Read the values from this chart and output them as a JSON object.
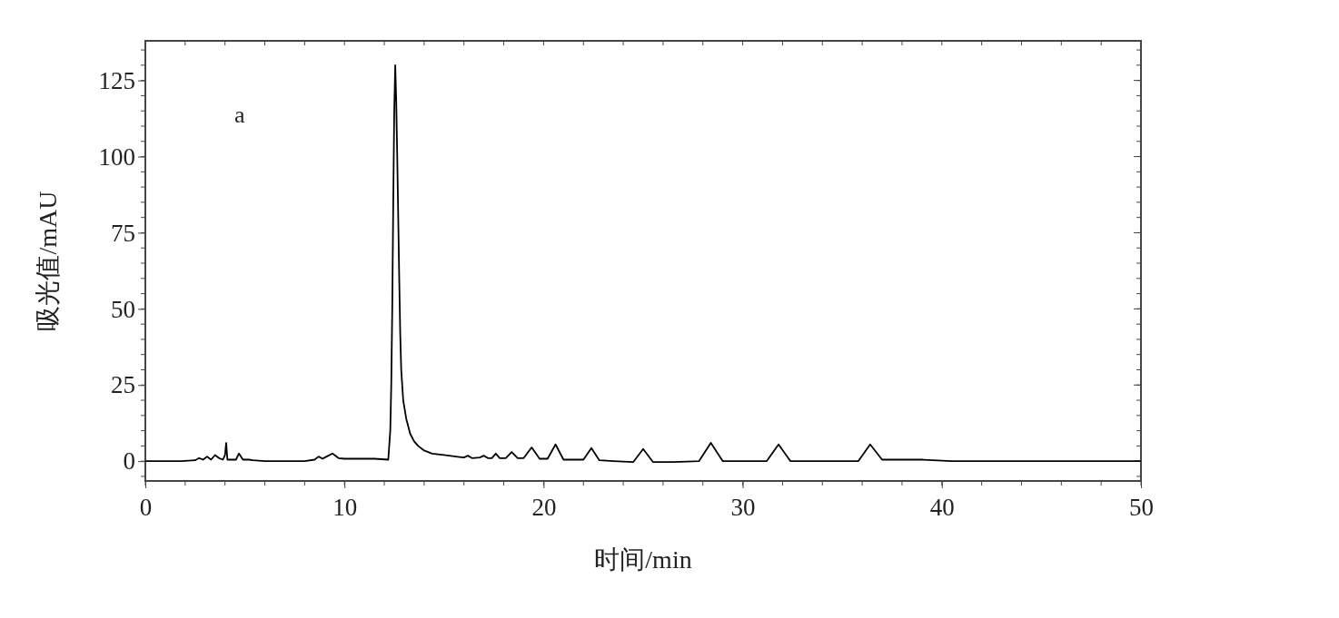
{
  "chart_data": {
    "type": "line",
    "xlabel": "时间/min",
    "ylabel": "吸光值/mAU",
    "annotations": [
      "a"
    ],
    "xlim": [
      0,
      50
    ],
    "xticks": [
      0,
      10,
      20,
      30,
      40,
      50
    ],
    "ylim": [
      -6.5,
      138
    ],
    "yticks": [
      0,
      25,
      50,
      75,
      100,
      125
    ],
    "grid": false,
    "marker": "none",
    "line_style": "solid",
    "series": [
      {
        "color": "#000000",
        "x": [
          0,
          1.8,
          2.5,
          2.7,
          2.9,
          3.1,
          3.3,
          3.5,
          3.7,
          3.9,
          4.0,
          4.06,
          4.12,
          4.3,
          4.55,
          4.7,
          4.9,
          5.2,
          5.4,
          6.0,
          8.0,
          8.5,
          8.7,
          8.9,
          9.1,
          9.4,
          9.7,
          10.0,
          11.5,
          12.2,
          12.3,
          12.35,
          12.4,
          12.45,
          12.5,
          12.55,
          12.6,
          12.65,
          12.7,
          12.75,
          12.8,
          12.85,
          12.95,
          13.1,
          13.3,
          13.5,
          13.7,
          14.0,
          14.4,
          15.0,
          15.6,
          16.0,
          16.2,
          16.4,
          16.8,
          17.0,
          17.2,
          17.4,
          17.6,
          17.8,
          18.1,
          18.4,
          18.7,
          19.0,
          19.4,
          19.8,
          20.2,
          20.6,
          21.0,
          22.0,
          22.4,
          22.8,
          23.5,
          24.5,
          25.0,
          25.5,
          26.5,
          27.8,
          28.4,
          29.0,
          30.0,
          31.2,
          31.8,
          32.4,
          34.0,
          35.8,
          36.4,
          37.0,
          39.0,
          40.5,
          50
        ],
        "values": [
          0,
          0,
          0.3,
          1,
          0.5,
          1.5,
          0.5,
          2,
          1,
          0.5,
          2,
          6,
          0.5,
          0.5,
          0.5,
          2.5,
          0.5,
          0.5,
          0.3,
          0,
          0,
          0.5,
          1.5,
          0.8,
          1.5,
          2.5,
          1,
          0.8,
          0.8,
          0.5,
          10,
          25,
          50,
          85,
          115,
          130,
          118,
          100,
          80,
          60,
          42,
          30,
          20,
          14,
          9,
          6.5,
          5,
          3.5,
          2.5,
          2,
          1.5,
          1.2,
          1.8,
          1,
          1.2,
          1.8,
          1,
          1,
          2.5,
          1,
          1,
          3,
          1,
          1,
          4.5,
          0.8,
          0.8,
          5.5,
          0.5,
          0.5,
          4.3,
          0.3,
          0,
          -0.3,
          4,
          -0.3,
          -0.3,
          0,
          6,
          0,
          0,
          0,
          5.5,
          0,
          0,
          0,
          5.5,
          0.5,
          0.5,
          0,
          0
        ]
      }
    ]
  }
}
